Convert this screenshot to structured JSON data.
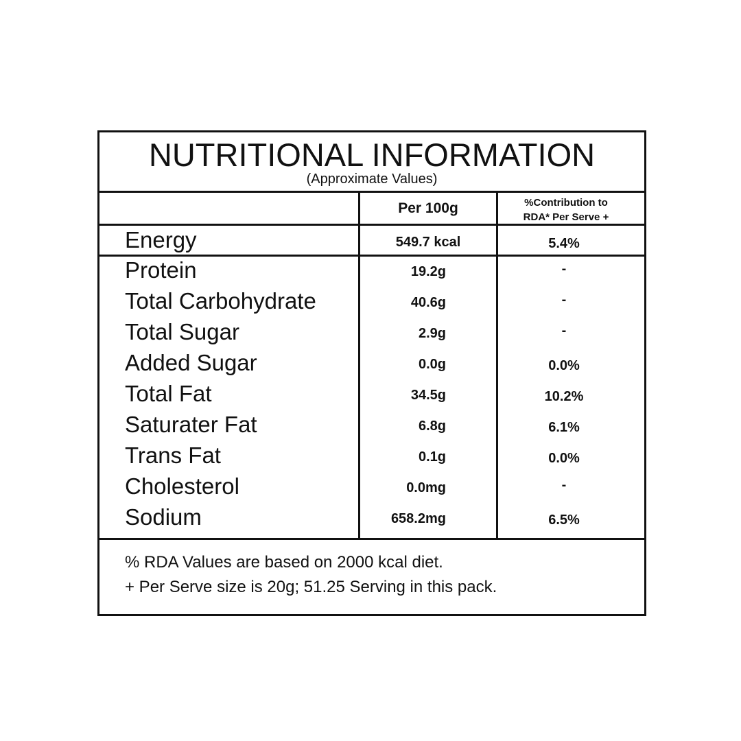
{
  "title": "NUTRITIONAL INFORMATION",
  "subtitle": "(Approximate Values)",
  "columns": {
    "per100": "Per 100g",
    "rda_line1": "%Contribution to",
    "rda_line2": "RDA* Per Serve +"
  },
  "energy": {
    "label": "Energy",
    "per100": "549.7 kcal",
    "rda": "5.4%"
  },
  "rows": [
    {
      "label": "Protein",
      "per100": "19.2g",
      "rda": "-"
    },
    {
      "label": "Total Carbohydrate",
      "per100": "40.6g",
      "rda": "-"
    },
    {
      "label": "Total Sugar",
      "per100": "2.9g",
      "rda": "-"
    },
    {
      "label": "Added Sugar",
      "per100": "0.0g",
      "rda": "0.0%"
    },
    {
      "label": "Total Fat",
      "per100": "34.5g",
      "rda": "10.2%"
    },
    {
      "label": "Saturater Fat",
      "per100": "6.8g",
      "rda": "6.1%"
    },
    {
      "label": "Trans Fat",
      "per100": "0.1g",
      "rda": "0.0%"
    },
    {
      "label": "Cholesterol",
      "per100": "0.0mg",
      "rda": "-"
    },
    {
      "label": "Sodium",
      "per100": "658.2mg",
      "rda": "6.5%"
    }
  ],
  "footnotes": [
    "% RDA Values are based on 2000 kcal diet.",
    "+ Per Serve size is 20g; 51.25 Serving in this pack."
  ]
}
